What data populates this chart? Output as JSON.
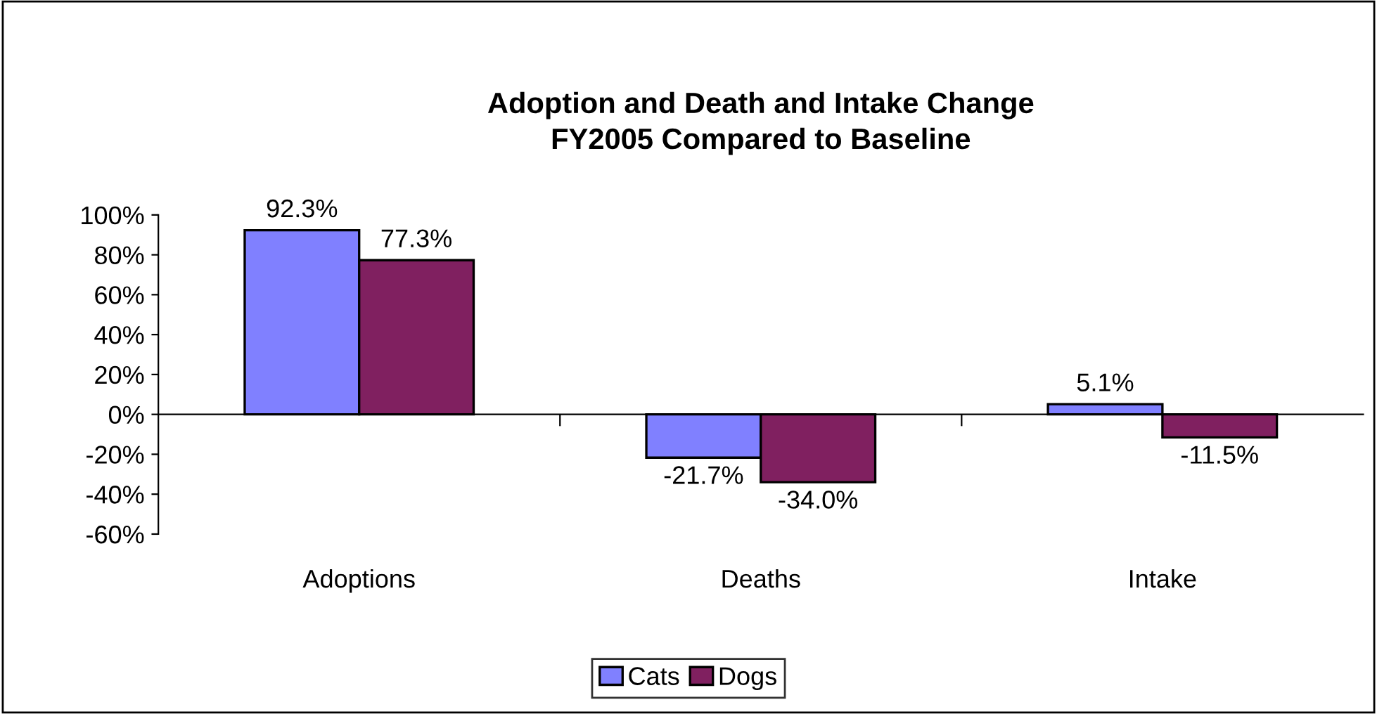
{
  "chart_data": {
    "type": "bar",
    "title": "Adoption and Death and Intake Change\nFY2005 Compared to Baseline",
    "categories": [
      "Adoptions",
      "Deaths",
      "Intake"
    ],
    "series": [
      {
        "name": "Cats",
        "color": "#8080ff",
        "values": [
          92.3,
          -21.7,
          5.1
        ],
        "value_labels": [
          "92.3%",
          "-21.7%",
          "5.1%"
        ]
      },
      {
        "name": "Dogs",
        "color": "#802060",
        "values": [
          77.3,
          -34.0,
          -11.5
        ],
        "value_labels": [
          "77.3%",
          "-34.0%",
          "-11.5%"
        ]
      }
    ],
    "ylim": [
      -60,
      100
    ],
    "yticks": [
      {
        "value": -60,
        "label": "-60%"
      },
      {
        "value": -40,
        "label": "-40%"
      },
      {
        "value": -20,
        "label": "-20%"
      },
      {
        "value": 0,
        "label": "0%"
      },
      {
        "value": 20,
        "label": "20%"
      },
      {
        "value": 40,
        "label": "40%"
      },
      {
        "value": 60,
        "label": "60%"
      },
      {
        "value": 80,
        "label": "80%"
      },
      {
        "value": 100,
        "label": "100%"
      }
    ],
    "legend": "bottom"
  }
}
